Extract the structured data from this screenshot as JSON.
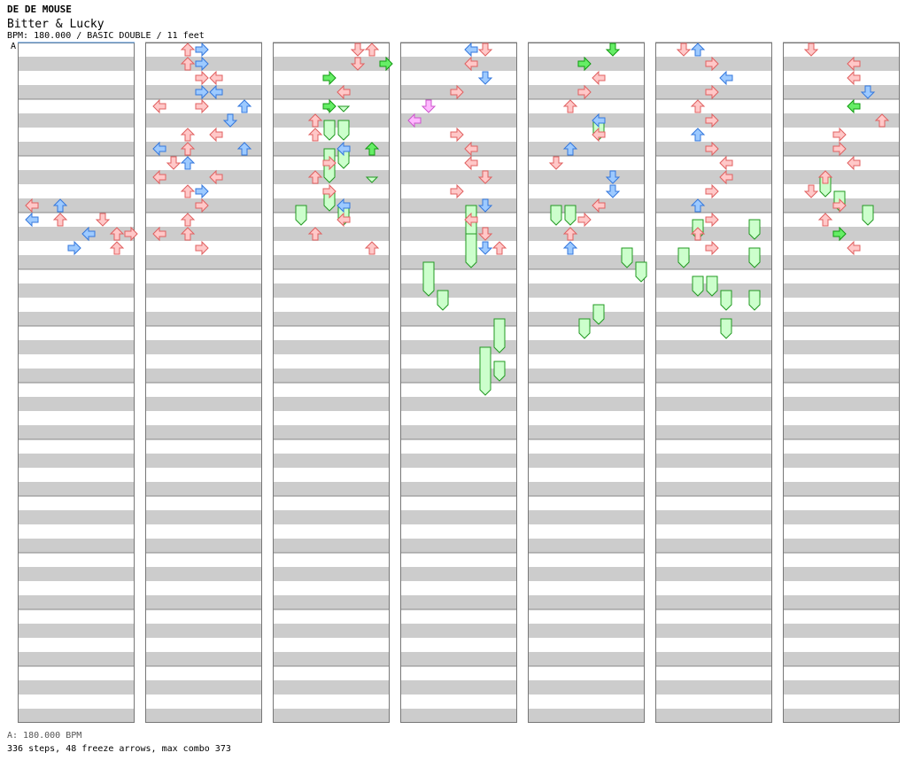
{
  "song": {
    "artist": "DE DE MOUSE",
    "title": "Bitter & Lucky",
    "info": "BPM: 180.000 / BASIC DOUBLE / 11 feet"
  },
  "bpm_marker": "A",
  "footer": {
    "bpm_line": "A: 180.000 BPM",
    "stats": "336 steps, 48 freeze arrows, max combo 373"
  },
  "colors": {
    "stripe": "#cccccc",
    "background": "#ffffff",
    "arrow_red_fill": "#ffc8c8",
    "arrow_red_stroke": "#e06060",
    "arrow_blue_fill": "#9dcaff",
    "arrow_blue_stroke": "#3377dd",
    "arrow_green_fill": "#66ee66",
    "arrow_green_stroke": "#119911",
    "arrow_pink_fill": "#ffb8ff",
    "arrow_pink_stroke": "#cc55cc",
    "freeze_fill": "#ccffcc",
    "freeze_stroke": "#229922"
  },
  "chart_data": {
    "type": "stepchart",
    "mode": "BASIC DOUBLE",
    "difficulty_feet": 11,
    "bpm": 180.0,
    "steps": 336,
    "freeze_arrows": 48,
    "max_combo": 373,
    "notes": [
      [
        0,
        11,
        0,
        "red"
      ],
      [
        0,
        11,
        2,
        "blue"
      ],
      [
        0,
        12,
        0,
        "blue"
      ],
      [
        0,
        12,
        2,
        "red"
      ],
      [
        0,
        12,
        5,
        "red"
      ],
      [
        0,
        13,
        4,
        "blue"
      ],
      [
        0,
        13,
        6,
        "red"
      ],
      [
        0,
        13,
        7,
        "red"
      ],
      [
        0,
        14,
        3,
        "blue"
      ],
      [
        0,
        14,
        6,
        "red"
      ],
      [
        1,
        0,
        2,
        "red"
      ],
      [
        1,
        0,
        3,
        "blue"
      ],
      [
        1,
        1,
        3,
        "blue"
      ],
      [
        1,
        1,
        2,
        "red"
      ],
      [
        1,
        2,
        3,
        "red"
      ],
      [
        1,
        2,
        4,
        "red"
      ],
      [
        1,
        3,
        3,
        "blue"
      ],
      [
        1,
        3,
        4,
        "blue"
      ],
      [
        1,
        4,
        0,
        "red"
      ],
      [
        1,
        4,
        3,
        "red"
      ],
      [
        1,
        4,
        6,
        "blue"
      ],
      [
        1,
        5,
        5,
        "blue"
      ],
      [
        1,
        6,
        2,
        "red"
      ],
      [
        1,
        6,
        4,
        "red"
      ],
      [
        1,
        7,
        0,
        "blue"
      ],
      [
        1,
        7,
        2,
        "red"
      ],
      [
        1,
        7,
        6,
        "blue"
      ],
      [
        1,
        8,
        1,
        "red"
      ],
      [
        1,
        8,
        2,
        "blue"
      ],
      [
        1,
        9,
        0,
        "red"
      ],
      [
        1,
        9,
        4,
        "red"
      ],
      [
        1,
        10,
        2,
        "red"
      ],
      [
        1,
        10,
        3,
        "blue"
      ],
      [
        1,
        11,
        3,
        "red"
      ],
      [
        1,
        12,
        2,
        "red"
      ],
      [
        1,
        13,
        0,
        "red"
      ],
      [
        1,
        13,
        2,
        "red"
      ],
      [
        1,
        14,
        3,
        "red"
      ],
      [
        2,
        0,
        5,
        "red"
      ],
      [
        2,
        0,
        6,
        "red"
      ],
      [
        2,
        1,
        7,
        "green"
      ],
      [
        2,
        1,
        5,
        "red"
      ],
      [
        2,
        2,
        3,
        "green"
      ],
      [
        2,
        3,
        4,
        "red"
      ],
      [
        2,
        4,
        3,
        "green"
      ],
      [
        2,
        5,
        2,
        "red"
      ],
      [
        2,
        6,
        2,
        "red"
      ],
      [
        2,
        7,
        4,
        "blue"
      ],
      [
        2,
        7,
        6,
        "green"
      ],
      [
        2,
        8,
        3,
        "red"
      ],
      [
        2,
        9,
        2,
        "red"
      ],
      [
        2,
        10,
        3,
        "red"
      ],
      [
        2,
        11,
        4,
        "blue"
      ],
      [
        2,
        12,
        4,
        "red"
      ],
      [
        2,
        13,
        2,
        "red"
      ],
      [
        2,
        14,
        6,
        "red"
      ],
      [
        3,
        0,
        4,
        "blue"
      ],
      [
        3,
        0,
        5,
        "red"
      ],
      [
        3,
        1,
        4,
        "red"
      ],
      [
        3,
        2,
        5,
        "blue"
      ],
      [
        3,
        3,
        3,
        "red"
      ],
      [
        3,
        4,
        1,
        "pink"
      ],
      [
        3,
        5,
        0,
        "pink"
      ],
      [
        3,
        6,
        3,
        "red"
      ],
      [
        3,
        7,
        4,
        "red"
      ],
      [
        3,
        8,
        4,
        "red"
      ],
      [
        3,
        9,
        5,
        "red"
      ],
      [
        3,
        10,
        3,
        "red"
      ],
      [
        3,
        11,
        5,
        "blue"
      ],
      [
        3,
        12,
        4,
        "red"
      ],
      [
        3,
        13,
        5,
        "red"
      ],
      [
        3,
        14,
        5,
        "blue"
      ],
      [
        3,
        14,
        6,
        "red"
      ],
      [
        4,
        0,
        5,
        "green"
      ],
      [
        4,
        1,
        3,
        "green"
      ],
      [
        4,
        2,
        4,
        "red"
      ],
      [
        4,
        3,
        3,
        "red"
      ],
      [
        4,
        4,
        2,
        "red"
      ],
      [
        4,
        5,
        4,
        "blue"
      ],
      [
        4,
        6,
        4,
        "red"
      ],
      [
        4,
        7,
        2,
        "blue"
      ],
      [
        4,
        8,
        1,
        "red"
      ],
      [
        4,
        9,
        5,
        "blue"
      ],
      [
        4,
        10,
        5,
        "blue"
      ],
      [
        4,
        11,
        4,
        "red"
      ],
      [
        4,
        12,
        3,
        "red"
      ],
      [
        4,
        13,
        2,
        "red"
      ],
      [
        4,
        14,
        2,
        "blue"
      ],
      [
        5,
        0,
        1,
        "red"
      ],
      [
        5,
        0,
        2,
        "blue"
      ],
      [
        5,
        1,
        3,
        "red"
      ],
      [
        5,
        2,
        4,
        "blue"
      ],
      [
        5,
        3,
        3,
        "red"
      ],
      [
        5,
        4,
        2,
        "red"
      ],
      [
        5,
        5,
        3,
        "red"
      ],
      [
        5,
        6,
        2,
        "blue"
      ],
      [
        5,
        7,
        3,
        "red"
      ],
      [
        5,
        8,
        4,
        "red"
      ],
      [
        5,
        9,
        4,
        "red"
      ],
      [
        5,
        10,
        3,
        "red"
      ],
      [
        5,
        11,
        2,
        "blue"
      ],
      [
        5,
        12,
        3,
        "red"
      ],
      [
        5,
        13,
        2,
        "red"
      ],
      [
        5,
        14,
        3,
        "red"
      ],
      [
        6,
        0,
        1,
        "red"
      ],
      [
        6,
        1,
        4,
        "red"
      ],
      [
        6,
        2,
        4,
        "red"
      ],
      [
        6,
        3,
        5,
        "blue"
      ],
      [
        6,
        4,
        4,
        "green"
      ],
      [
        6,
        5,
        6,
        "red"
      ],
      [
        6,
        6,
        3,
        "red"
      ],
      [
        6,
        7,
        3,
        "red"
      ],
      [
        6,
        8,
        4,
        "red"
      ],
      [
        6,
        9,
        2,
        "red"
      ],
      [
        6,
        10,
        1,
        "red"
      ],
      [
        6,
        11,
        3,
        "red"
      ],
      [
        6,
        12,
        2,
        "red"
      ],
      [
        6,
        13,
        3,
        "green"
      ],
      [
        6,
        14,
        4,
        "red"
      ]
    ],
    "freezes": [
      [
        2,
        4,
        3,
        4,
        1
      ],
      [
        2,
        4,
        4,
        4,
        1
      ],
      [
        2,
        5,
        3,
        6,
        1
      ],
      [
        2,
        5,
        4,
        6,
        1
      ],
      [
        2,
        7,
        3,
        8,
        1
      ],
      [
        2,
        7,
        4,
        8,
        1
      ],
      [
        2,
        8,
        3,
        9,
        1
      ],
      [
        2,
        9,
        6,
        9,
        1
      ],
      [
        2,
        10,
        3,
        11,
        1
      ],
      [
        2,
        11,
        4,
        12,
        1
      ],
      [
        2,
        11,
        1,
        12,
        1
      ],
      [
        3,
        11,
        4,
        13,
        1
      ],
      [
        3,
        13,
        4,
        15,
        1
      ],
      [
        3,
        15,
        1,
        17,
        1
      ],
      [
        3,
        17,
        2,
        18,
        1
      ],
      [
        3,
        19,
        6,
        21,
        1
      ],
      [
        3,
        21,
        5,
        24,
        1
      ],
      [
        3,
        22,
        6,
        23,
        1
      ],
      [
        4,
        5,
        4,
        6,
        1
      ],
      [
        4,
        11,
        1,
        12,
        1
      ],
      [
        4,
        11,
        2,
        12,
        1
      ],
      [
        4,
        14,
        6,
        15,
        1
      ],
      [
        4,
        15,
        7,
        16,
        1
      ],
      [
        4,
        18,
        4,
        19,
        1
      ],
      [
        4,
        19,
        3,
        20,
        1
      ],
      [
        5,
        12,
        2,
        13,
        1
      ],
      [
        5,
        12,
        6,
        13,
        1
      ],
      [
        5,
        14,
        1,
        15,
        1
      ],
      [
        5,
        14,
        6,
        15,
        1
      ],
      [
        5,
        16,
        2,
        17,
        1
      ],
      [
        5,
        16,
        3,
        17,
        1
      ],
      [
        5,
        17,
        4,
        18,
        1
      ],
      [
        5,
        17,
        6,
        18,
        1
      ],
      [
        5,
        19,
        4,
        20,
        1
      ],
      [
        6,
        9,
        2,
        10,
        1
      ],
      [
        6,
        10,
        3,
        11,
        1
      ],
      [
        6,
        11,
        5,
        12,
        1
      ]
    ]
  }
}
